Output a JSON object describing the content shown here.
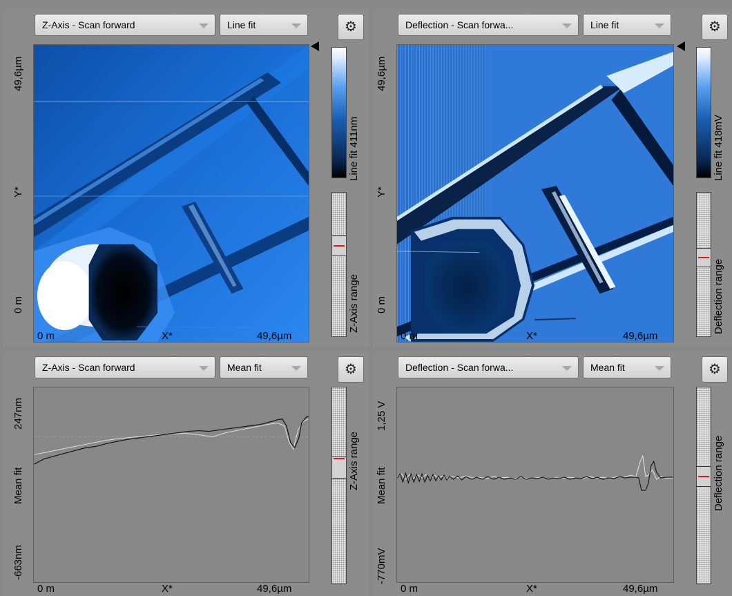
{
  "panels": {
    "z_image": {
      "channel": "Z-Axis - Scan forward",
      "filter": "Line fit",
      "y_top": "49,6µm",
      "y_mid": "Y*",
      "y_bottom": "0 m",
      "x_left": "0 m",
      "x_mid": "X*",
      "x_right": "49,6µm",
      "colorbar_label": "Line fit 411nm",
      "range_label": "Z-Axis range",
      "settings_icon": "gear-icon"
    },
    "deflection_image": {
      "channel": "Deflection - Scan forwa...",
      "filter": "Line fit",
      "y_top": "49,6µm",
      "y_mid": "Y*",
      "y_bottom": "0 m",
      "x_left": "0 m",
      "x_mid": "X*",
      "x_right": "49,6µm",
      "colorbar_label": "Line fit 418mV",
      "range_label": "Deflection range",
      "settings_icon": "gear-icon"
    },
    "z_profile": {
      "channel": "Z-Axis - Scan forward",
      "filter": "Mean fit",
      "y_top": "247nm",
      "y_mid": "Mean fit",
      "y_bottom": "-663nm",
      "x_left": "0 m",
      "x_mid": "X*",
      "x_right": "49,6µm",
      "range_label": "Z-Axis range",
      "settings_icon": "gear-icon"
    },
    "deflection_profile": {
      "channel": "Deflection - Scan forwa...",
      "filter": "Mean fit",
      "y_top": "1,25 V",
      "y_mid": "Mean fit",
      "y_bottom": "-770mV",
      "x_left": "0 m",
      "x_mid": "X*",
      "x_right": "49,6µm",
      "range_label": "Deflection range",
      "settings_icon": "gear-icon"
    }
  },
  "colors": {
    "background": "#888888",
    "dropdown_bg": "#e0e0e0",
    "colormap_low": "#000000",
    "colormap_mid": "#1a5fb4",
    "colormap_high": "#ffffff",
    "range_marker": "#d62020"
  }
}
